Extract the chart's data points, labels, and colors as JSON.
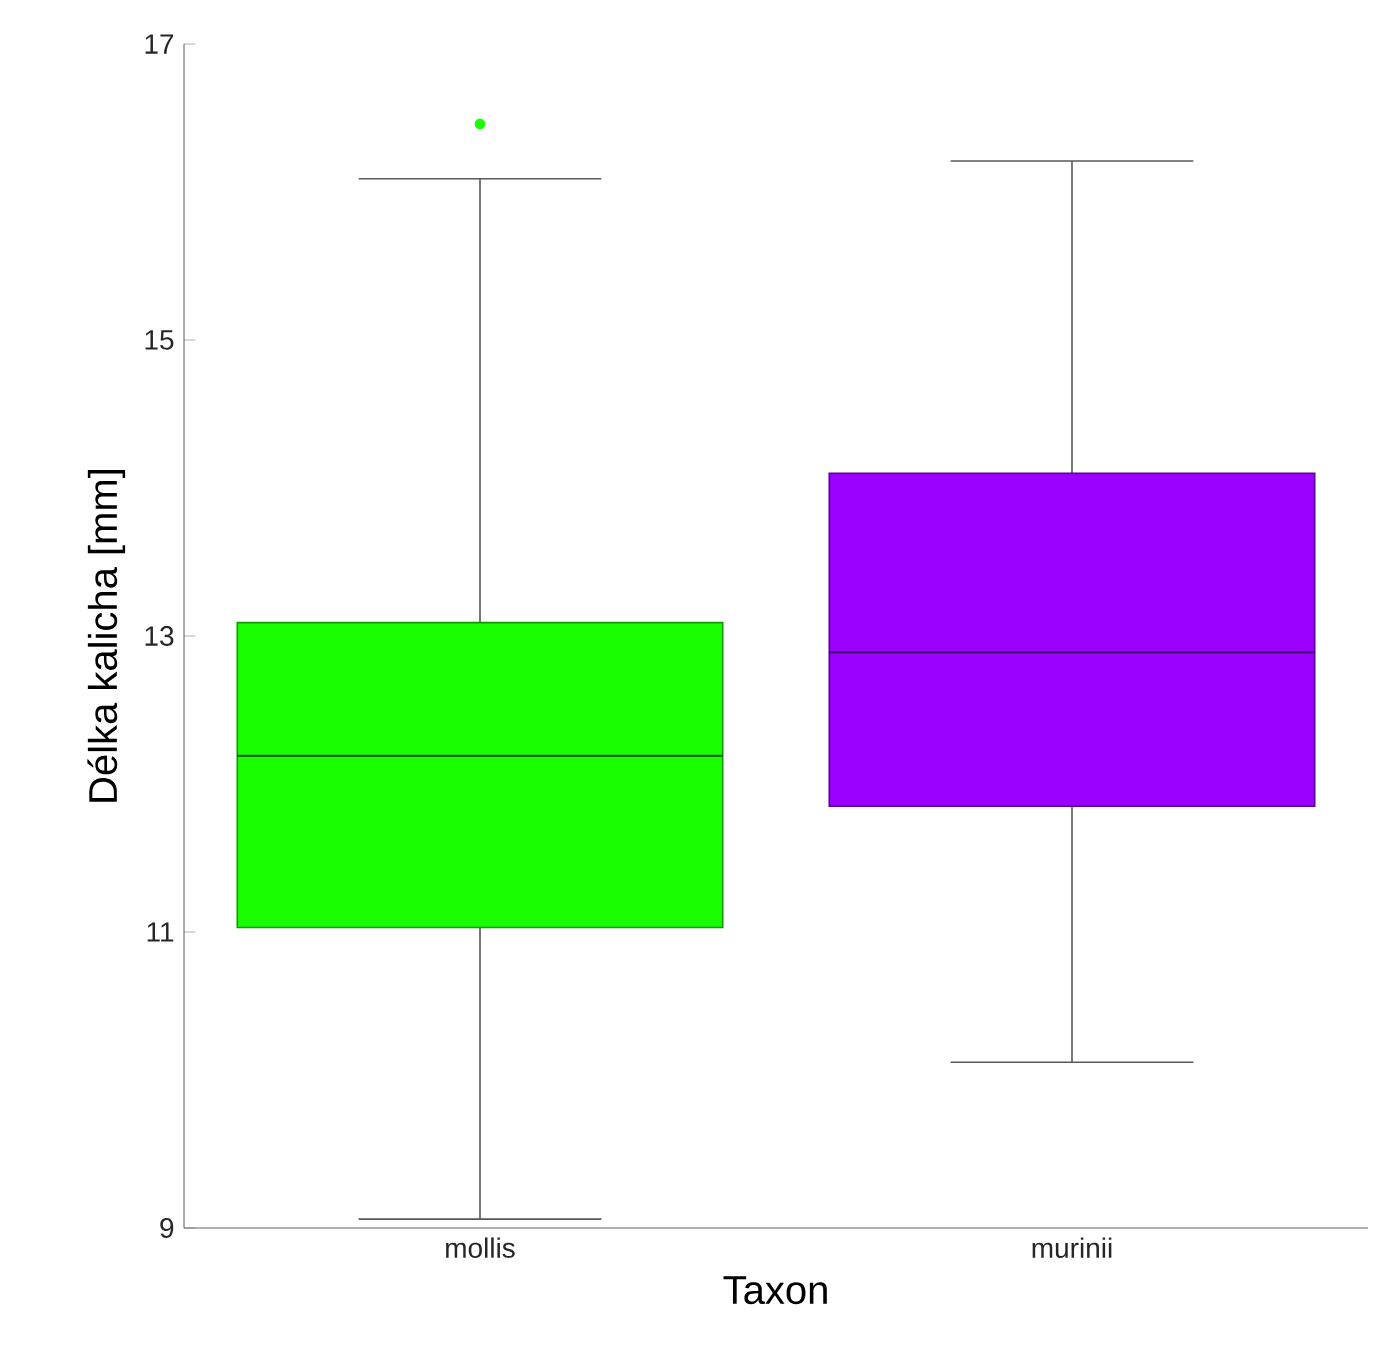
{
  "chart_data": {
    "type": "box",
    "xlabel": "Taxon",
    "ylabel": "Délka kalicha [mm]",
    "categories": [
      "mollis",
      "murinii"
    ],
    "colors": [
      "#1aff00",
      "#9900ff"
    ],
    "boxes": [
      {
        "low": 9.06,
        "q1": 11.03,
        "median": 12.19,
        "q3": 13.09,
        "high": 16.09,
        "outliers": [
          16.46
        ]
      },
      {
        "low": 10.12,
        "q1": 11.85,
        "median": 12.89,
        "q3": 14.1,
        "high": 16.21
      }
    ],
    "ylim": [
      9,
      17
    ],
    "yticks": [
      9,
      11,
      13,
      15,
      17
    ]
  }
}
